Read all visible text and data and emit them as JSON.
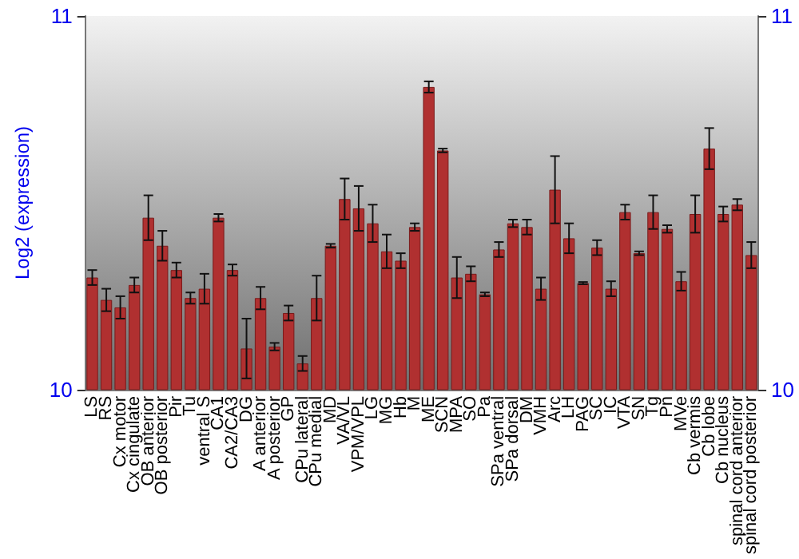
{
  "chart_data": {
    "type": "bar",
    "ylabel": "Log2 (expression)",
    "categories": [
      "LS",
      "RS",
      "Cx motor",
      "Cx cingulate",
      "OB anterior",
      "OB posterior",
      "Pir",
      "Tu",
      "ventral S",
      "CA1",
      "CA2/CA3",
      "DG",
      "A anterior",
      "A posterior",
      "GP",
      "CPu lateral",
      "CPu medial",
      "MD",
      "VA/VL",
      "VPM/VPL",
      "LG",
      "MG",
      "Hb",
      "M",
      "ME",
      "SCN",
      "MPA",
      "SO",
      "Pa",
      "SPa ventral",
      "SPa dorsal",
      "DM",
      "VMH",
      "Arc",
      "LH",
      "PAG",
      "SC",
      "IC",
      "VTA",
      "SN",
      "Tg",
      "Pn",
      "MVe",
      "Cb vermis",
      "Cb lobe",
      "Cb nucleus",
      "spinal cord anterior",
      "spinal cord posterior"
    ],
    "values": [
      10.3,
      10.24,
      10.22,
      10.28,
      10.46,
      10.385,
      10.32,
      10.245,
      10.27,
      10.46,
      10.32,
      10.11,
      10.245,
      10.115,
      10.205,
      10.07,
      10.245,
      10.385,
      10.51,
      10.485,
      10.445,
      10.37,
      10.345,
      10.435,
      10.81,
      10.64,
      10.3,
      10.31,
      10.255,
      10.375,
      10.445,
      10.435,
      10.27,
      10.535,
      10.405,
      10.285,
      10.38,
      10.27,
      10.475,
      10.365,
      10.475,
      10.43,
      10.29,
      10.47,
      10.645,
      10.47,
      10.495,
      10.36
    ],
    "errors": [
      0.02,
      0.03,
      0.03,
      0.02,
      0.06,
      0.04,
      0.02,
      0.015,
      0.04,
      0.01,
      0.015,
      0.08,
      0.03,
      0.01,
      0.02,
      0.02,
      0.06,
      0.005,
      0.055,
      0.06,
      0.05,
      0.045,
      0.02,
      0.01,
      0.015,
      0.005,
      0.055,
      0.02,
      0.005,
      0.02,
      0.01,
      0.02,
      0.03,
      0.09,
      0.04,
      0.003,
      0.02,
      0.02,
      0.02,
      0.005,
      0.045,
      0.01,
      0.025,
      0.05,
      0.055,
      0.02,
      0.015,
      0.035
    ],
    "color": "#b03030",
    "ylim": [
      10,
      11
    ],
    "yticks": [
      10,
      11
    ],
    "y2lim": [
      10,
      11
    ],
    "y2ticks": [
      10,
      11
    ],
    "grid": false
  }
}
